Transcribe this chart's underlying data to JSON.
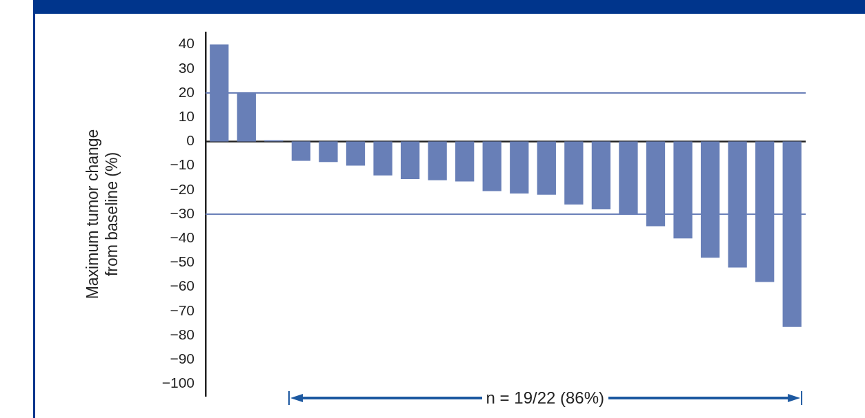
{
  "chart_data": {
    "type": "bar",
    "ylabel": "Maximum tumor change\nfrom baseline (%)",
    "categories": [
      null,
      null,
      null,
      null,
      null,
      null,
      null,
      null,
      null,
      null,
      null,
      null,
      null,
      null,
      null,
      null,
      null,
      null,
      null,
      null,
      null,
      null
    ],
    "values": [
      40,
      20,
      0.5,
      -8,
      -8.5,
      -10,
      -14,
      -15.5,
      -16,
      -16.5,
      -20.5,
      -21.5,
      -22,
      -26,
      -28,
      -30,
      -35,
      -40,
      -48,
      -52,
      -58,
      -76.5
    ],
    "color": "#687fb7",
    "ylim": [
      -105,
      45
    ],
    "yticks": [
      {
        "value": 40,
        "label": "40"
      },
      {
        "value": 30,
        "label": "30"
      },
      {
        "value": 20,
        "label": "20"
      },
      {
        "value": 10,
        "label": "10"
      },
      {
        "value": 0,
        "label": "0"
      },
      {
        "value": -10,
        "label": "−10"
      },
      {
        "value": -20,
        "label": "−20"
      },
      {
        "value": -30,
        "label": "−30"
      },
      {
        "value": -40,
        "label": "−40"
      },
      {
        "value": -50,
        "label": "−50"
      },
      {
        "value": -60,
        "label": "−60"
      },
      {
        "value": -70,
        "label": "−70"
      },
      {
        "value": -80,
        "label": "−80"
      },
      {
        "value": -90,
        "label": "−90"
      },
      {
        "value": -100,
        "label": "−100"
      }
    ],
    "ref_lines": [
      {
        "axis": "y",
        "value": 20,
        "color": "#6a80b8"
      },
      {
        "axis": "y",
        "value": -30,
        "color": "#6a80b8"
      }
    ],
    "annotations": [
      "n = 19/22 (86%)"
    ],
    "grid": false,
    "legend": false
  }
}
